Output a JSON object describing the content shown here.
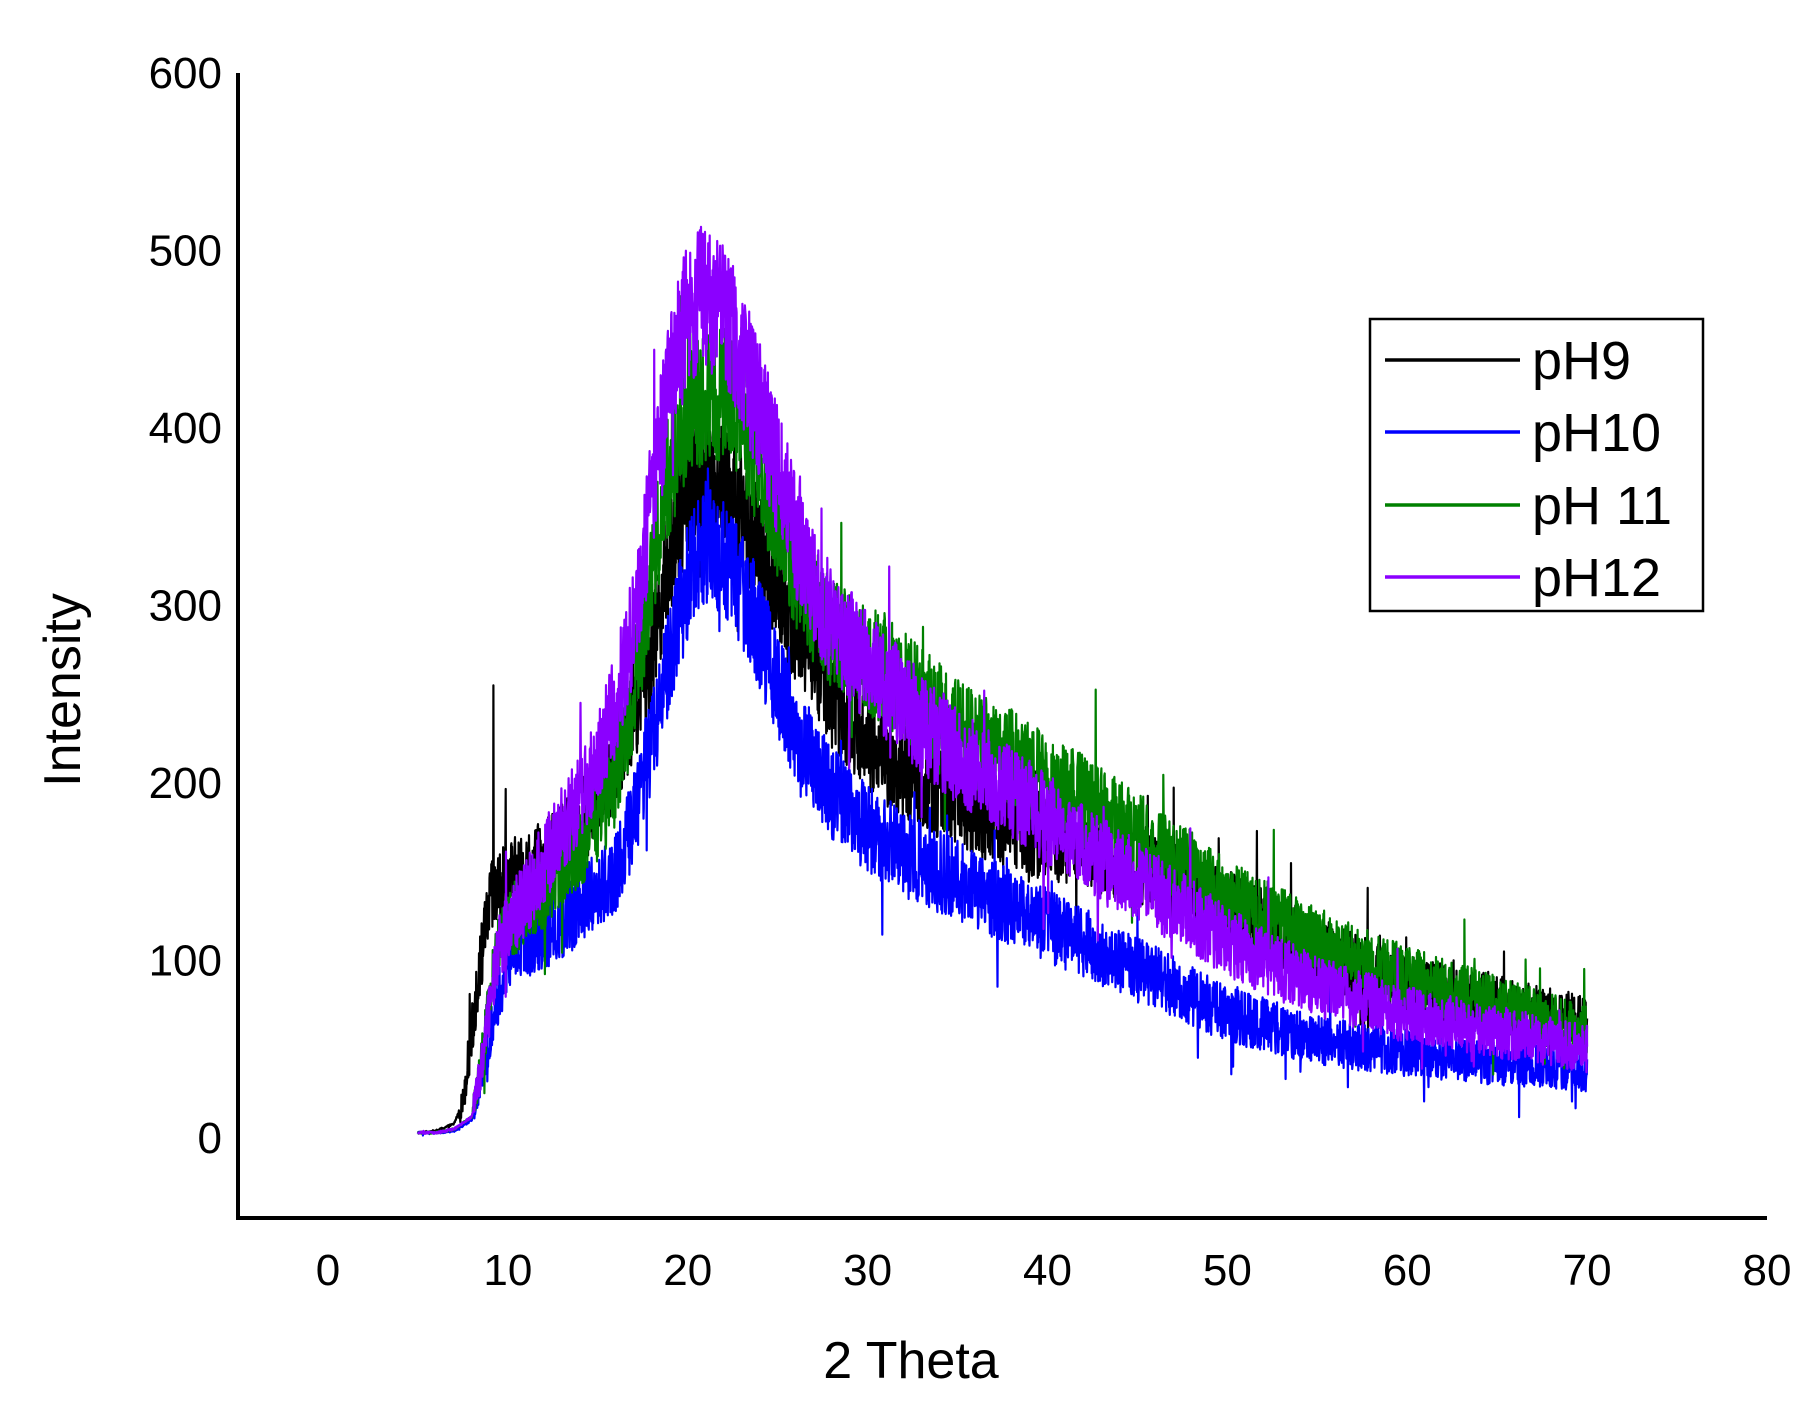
{
  "chart_data": {
    "type": "line",
    "title": "",
    "xlabel": "2 Theta",
    "ylabel": "Intensity",
    "xlim": [
      -5,
      80
    ],
    "ylim": [
      -45,
      600
    ],
    "xticks": [
      0,
      10,
      20,
      30,
      40,
      50,
      60,
      70,
      80
    ],
    "yticks": [
      0,
      100,
      200,
      300,
      400,
      500,
      600
    ],
    "xtick_labels": [
      "0",
      "10",
      "20",
      "30",
      "40",
      "50",
      "60",
      "70",
      "80"
    ],
    "ytick_labels": [
      "0",
      "100",
      "200",
      "300",
      "400",
      "500",
      "600"
    ],
    "grid": false,
    "legend_position": "top-right",
    "series": [
      {
        "name": "pH9",
        "color": "#000000",
        "x": [
          5,
          6,
          7,
          7.5,
          8,
          8.5,
          9,
          9.5,
          10,
          11,
          12,
          13,
          14,
          15,
          16,
          17,
          18,
          19,
          20,
          21,
          22,
          23,
          24,
          25,
          26,
          27,
          28,
          30,
          32,
          35,
          38,
          40,
          42,
          45,
          48,
          50,
          55,
          60,
          65,
          70
        ],
        "y": [
          3,
          4,
          8,
          20,
          60,
          100,
          132,
          140,
          145,
          150,
          155,
          165,
          175,
          195,
          215,
          240,
          275,
          330,
          365,
          375,
          370,
          355,
          330,
          305,
          290,
          270,
          250,
          225,
          205,
          190,
          175,
          170,
          165,
          155,
          140,
          130,
          105,
          85,
          75,
          65
        ],
        "spike": {
          "x": 9.2,
          "y": 255
        }
      },
      {
        "name": "pH10",
        "color": "#0000ff",
        "x": [
          5,
          6,
          7,
          8,
          8.5,
          9,
          9.5,
          10,
          11,
          12,
          13,
          14,
          15,
          16,
          17,
          18,
          19,
          20,
          21,
          22,
          23,
          24,
          25,
          26,
          27,
          28,
          30,
          32,
          35,
          38,
          40,
          42,
          45,
          48,
          50,
          55,
          60,
          65,
          70
        ],
        "y": [
          3,
          3,
          4,
          10,
          30,
          60,
          80,
          100,
          110,
          115,
          120,
          130,
          140,
          150,
          180,
          225,
          270,
          315,
          335,
          330,
          310,
          285,
          255,
          230,
          210,
          195,
          175,
          160,
          145,
          130,
          120,
          110,
          95,
          80,
          70,
          55,
          48,
          42,
          38
        ]
      },
      {
        "name": "pH 11",
        "color": "#008000",
        "x": [
          5,
          6,
          7,
          8,
          8.5,
          9,
          9.5,
          10,
          11,
          12,
          13,
          14,
          15,
          16,
          17,
          18,
          19,
          20,
          21,
          22,
          23,
          24,
          25,
          26,
          27,
          28,
          30,
          32,
          35,
          38,
          40,
          42,
          45,
          48,
          50,
          55,
          60,
          65,
          70
        ],
        "y": [
          3,
          3,
          5,
          12,
          40,
          80,
          110,
          120,
          130,
          140,
          155,
          165,
          180,
          200,
          250,
          320,
          375,
          410,
          420,
          420,
          405,
          380,
          350,
          320,
          300,
          285,
          270,
          255,
          230,
          215,
          200,
          190,
          170,
          150,
          135,
          110,
          90,
          75,
          60
        ]
      },
      {
        "name": "pH12",
        "color": "#8b00ff",
        "x": [
          5,
          6,
          7,
          8,
          8.5,
          9,
          9.5,
          10,
          11,
          12,
          13,
          14,
          15,
          16,
          17,
          18,
          19,
          20,
          21,
          22,
          23,
          24,
          25,
          26,
          27,
          28,
          30,
          32,
          35,
          38,
          40,
          42,
          45,
          48,
          50,
          55,
          60,
          65,
          70
        ],
        "y": [
          3,
          3,
          5,
          12,
          40,
          75,
          105,
          120,
          135,
          155,
          175,
          190,
          215,
          245,
          290,
          360,
          425,
          465,
          475,
          465,
          440,
          410,
          375,
          340,
          310,
          290,
          265,
          245,
          215,
          195,
          180,
          165,
          145,
          125,
          110,
          85,
          70,
          60,
          50
        ]
      }
    ]
  }
}
